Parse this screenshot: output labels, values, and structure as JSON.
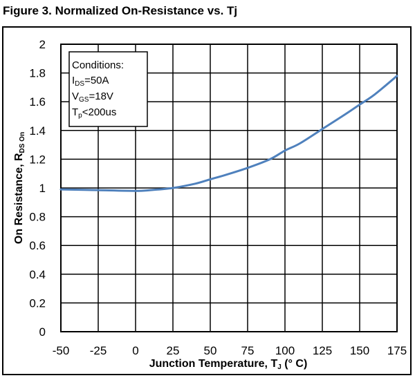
{
  "figure": {
    "title": "Figure 3. Normalized On-Resistance vs. Tj"
  },
  "conditions": {
    "heading": "Conditions:",
    "lines": [
      {
        "main": "I",
        "sub": "DS",
        "rest": "=50A"
      },
      {
        "main": "V",
        "sub": "GS",
        "rest": "=18V"
      },
      {
        "main": "T",
        "sub": "p",
        "rest": "<200us"
      }
    ]
  },
  "chart_data": {
    "type": "line",
    "title": "Figure 3. Normalized On-Resistance vs. Tj",
    "xlabel_main": "Junction Temperature, T",
    "xlabel_sub": "J",
    "xlabel_unit": " (° C)",
    "ylabel_main": "On Resistance, R",
    "ylabel_sub": "DS On",
    "xlim": [
      -50,
      175
    ],
    "ylim": [
      0,
      2
    ],
    "xticks": [
      -50,
      -25,
      0,
      25,
      50,
      75,
      100,
      125,
      150,
      175
    ],
    "yticks": [
      "0",
      "0.2",
      "0.4",
      "0.6",
      "0.8",
      "1",
      "1.2",
      "1.4",
      "1.6",
      "1.8",
      "2"
    ],
    "grid": true,
    "line_color": "#4f81bd",
    "series": [
      {
        "x": [
          -50,
          -25,
          0,
          10,
          25,
          40,
          50,
          60,
          75,
          90,
          100,
          110,
          125,
          140,
          150,
          160,
          175
        ],
        "y": [
          0.99,
          0.985,
          0.98,
          0.985,
          1.0,
          1.03,
          1.06,
          1.09,
          1.14,
          1.2,
          1.26,
          1.31,
          1.41,
          1.51,
          1.58,
          1.65,
          1.78
        ]
      }
    ]
  }
}
